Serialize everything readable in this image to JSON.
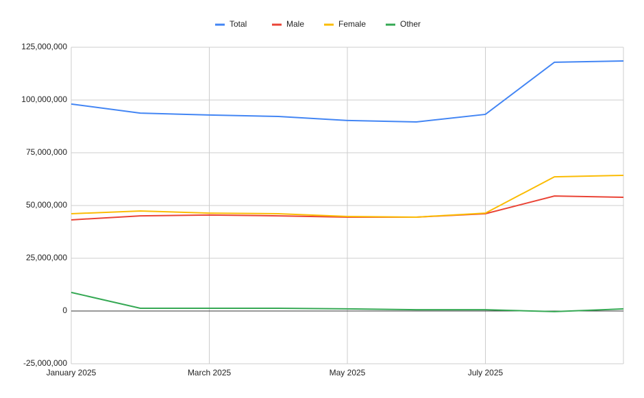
{
  "chart_data": {
    "type": "line",
    "categories": [
      "January 2025",
      null,
      "March 2025",
      null,
      "May 2025",
      null,
      "July 2025",
      null,
      null
    ],
    "series": [
      {
        "name": "Total",
        "color": "#4285f4",
        "values": [
          98.1,
          93.8,
          92.9,
          92.2,
          90.3,
          89.6,
          93.2,
          117.9,
          118.5
        ]
      },
      {
        "name": "Male",
        "color": "#ea4335",
        "values": [
          43.2,
          45.1,
          45.5,
          45.1,
          44.5,
          44.5,
          46.1,
          54.5,
          53.9
        ]
      },
      {
        "name": "Female",
        "color": "#fbbc04",
        "values": [
          46.1,
          47.4,
          46.4,
          46.1,
          44.8,
          44.5,
          46.4,
          63.6,
          64.3
        ]
      },
      {
        "name": "Other",
        "color": "#34a853",
        "values": [
          8.8,
          1.3,
          1.3,
          1.3,
          1.0,
          0.6,
          0.6,
          -0.3,
          1.0
        ]
      }
    ],
    "ylim": [
      -25,
      125
    ],
    "yticks": [
      {
        "value": -25,
        "label": "-25,000,000"
      },
      {
        "value": 0,
        "label": "0"
      },
      {
        "value": 25,
        "label": "25,000,000"
      },
      {
        "value": 50,
        "label": "50,000,000"
      },
      {
        "value": 75,
        "label": "75,000,000"
      },
      {
        "value": 100,
        "label": "100,000,000"
      },
      {
        "value": 125,
        "label": "125,000,000"
      }
    ],
    "grid": true,
    "legend": "top"
  }
}
